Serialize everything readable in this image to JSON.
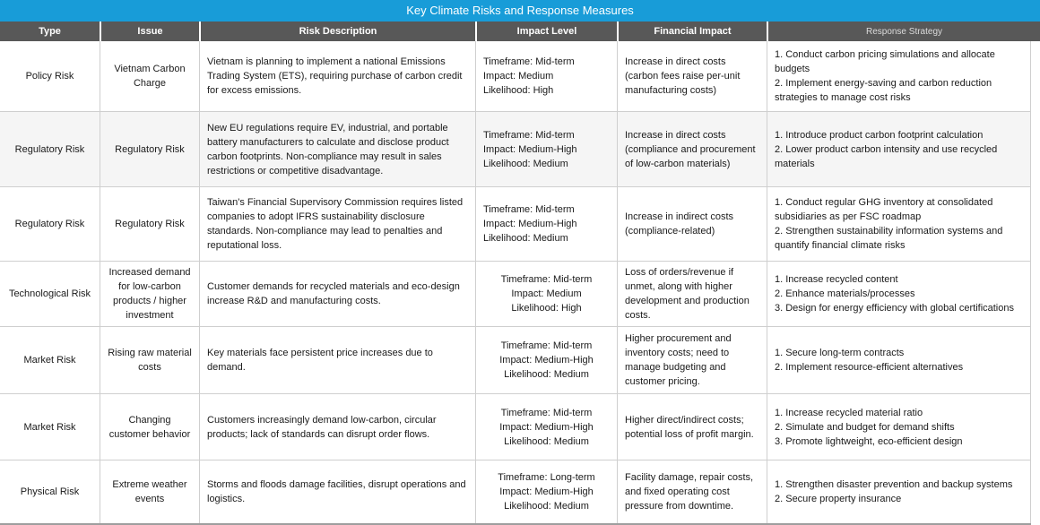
{
  "title": "Key Climate Risks and Response Measures",
  "colors": {
    "title_bar_bg": "#189cd8",
    "title_text": "#ffffff",
    "header_bg": "#585858",
    "header_text": "#ffffff",
    "row_alt_bg": "#f5f5f5",
    "border": "#cfcfcf",
    "body_text": "#1a1a1a"
  },
  "columns": {
    "type": "Type",
    "issue": "Issue",
    "description": "Risk Description",
    "impact_level": "Impact Level",
    "financial_impact": "Financial Impact",
    "response_strategy": "Response Strategy"
  },
  "rows": [
    {
      "type": "Policy Risk",
      "issue": "Vietnam Carbon Charge",
      "description": "Vietnam is planning to implement a national Emissions Trading System (ETS), requiring purchase of carbon credit for excess emissions.",
      "impact_level": "Timeframe: Mid-term\nImpact: Medium\nLikelihood: High",
      "financial_impact": "Increase in direct costs (carbon fees raise per-unit manufacturing costs)",
      "response_strategy": "1. Conduct carbon pricing simulations and allocate budgets\n2. Implement energy-saving and carbon reduction strategies to manage cost risks"
    },
    {
      "type": "Regulatory Risk",
      "issue": "Regulatory Risk",
      "description": "New EU regulations require EV, industrial, and portable battery manufacturers to calculate and disclose product carbon footprints. Non-compliance may result in sales restrictions or competitive disadvantage.",
      "impact_level": "Timeframe: Mid-term\nImpact: Medium-High\nLikelihood: Medium",
      "financial_impact": "Increase in direct costs (compliance and procurement of low-carbon materials)",
      "response_strategy": "1. Introduce product carbon footprint calculation\n2. Lower product carbon intensity and use recycled materials"
    },
    {
      "type": "Regulatory Risk",
      "issue": "Regulatory Risk",
      "description": "Taiwan's Financial Supervisory Commission requires listed companies to adopt IFRS sustainability disclosure standards. Non-compliance may lead to penalties and reputational loss.",
      "impact_level": "Timeframe: Mid-term\nImpact: Medium-High\nLikelihood: Medium",
      "financial_impact": "Increase in indirect costs (compliance-related)",
      "response_strategy": "1. Conduct regular GHG inventory at consolidated subsidiaries as per FSC roadmap\n2. Strengthen sustainability information systems and quantify financial climate risks"
    },
    {
      "type": "Technological Risk",
      "issue": "Increased demand for low-carbon products / higher investment",
      "description": "Customer demands for recycled materials and eco-design increase R&D and manufacturing costs.",
      "impact_level": "Timeframe: Mid-term\nImpact: Medium\nLikelihood: High",
      "financial_impact": "Loss of orders/revenue if unmet, along with higher development and production costs.",
      "response_strategy": "1. Increase recycled content\n2. Enhance materials/processes\n3. Design for energy efficiency with global certifications"
    },
    {
      "type": "Market Risk",
      "issue": "Rising raw material costs",
      "description": "Key materials face persistent price increases due to demand.",
      "impact_level": "Timeframe: Mid-term\nImpact: Medium-High\nLikelihood: Medium",
      "financial_impact": "Higher procurement and inventory costs; need to manage budgeting and customer pricing.",
      "response_strategy": "1. Secure long-term contracts\n2. Implement resource-efficient alternatives"
    },
    {
      "type": "Market Risk",
      "issue": "Changing customer behavior",
      "description": "Customers increasingly demand low-carbon, circular products; lack of standards can disrupt order flows.",
      "impact_level": "Timeframe: Mid-term\nImpact: Medium-High\nLikelihood: Medium",
      "financial_impact": "Higher direct/indirect costs; potential loss of profit margin.",
      "response_strategy": "1. Increase recycled material ratio\n2. Simulate and budget for demand shifts\n3. Promote lightweight, eco-efficient design"
    },
    {
      "type": "Physical Risk",
      "issue": "Extreme weather events",
      "description": "Storms and floods damage facilities, disrupt operations and logistics.",
      "impact_level": "Timeframe: Long-term\nImpact: Medium-High\nLikelihood: Medium",
      "financial_impact": "Facility damage, repair costs, and fixed operating cost pressure from downtime.",
      "response_strategy": "1. Strengthen disaster prevention and backup systems\n2. Secure property insurance"
    }
  ]
}
